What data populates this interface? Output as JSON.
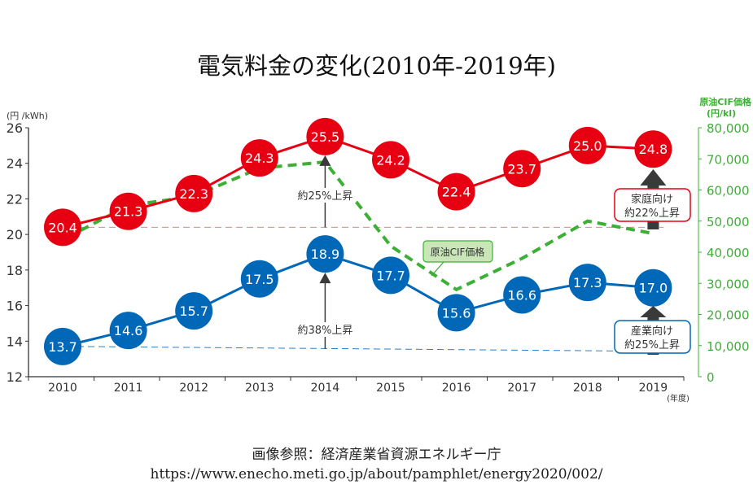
{
  "title": "電気料金の変化(2010年-2019年)",
  "footer": {
    "source_line": "画像参照：経済産業省資源エネルギー庁",
    "url_line": "https://www.enecho.meti.go.jp/about/pamphlet/energy2020/002/"
  },
  "chart_data": {
    "type": "line",
    "categories": [
      "2010",
      "2011",
      "2012",
      "2013",
      "2014",
      "2015",
      "2016",
      "2017",
      "2018",
      "2019"
    ],
    "xlabel": "(年度)",
    "ylabel": "(円 /kWh)",
    "ylabel_right": [
      "原油CIF価格",
      "(円/kl)"
    ],
    "ylim": [
      12,
      26
    ],
    "yticks": [
      12,
      14,
      16,
      18,
      20,
      22,
      24,
      26
    ],
    "ylim_right": [
      0,
      80000
    ],
    "yticks_right": [
      "0",
      "10,000",
      "20,000",
      "30,000",
      "40,000",
      "50,000",
      "60,000",
      "70,000",
      "80,000"
    ],
    "grid": false,
    "series": [
      {
        "key": "household",
        "values": [
          20.4,
          21.3,
          22.3,
          24.3,
          25.5,
          24.2,
          22.4,
          23.7,
          25.0,
          24.8
        ],
        "color": "#e60012",
        "axis": "left"
      },
      {
        "key": "industry",
        "values": [
          13.7,
          14.6,
          15.7,
          17.5,
          18.9,
          17.7,
          15.6,
          16.6,
          17.3,
          17.0
        ],
        "color": "#0068b7",
        "axis": "left"
      },
      {
        "name": "原油CIF価格",
        "values": [
          47000,
          55000,
          58000,
          67000,
          69000,
          42000,
          28000,
          38000,
          50000,
          46000
        ],
        "color": "#3cb035",
        "axis": "right",
        "style": "dashed"
      }
    ],
    "annotations": {
      "household_2014": "約25%上昇",
      "industry_2014": "約38%上昇",
      "household_2019": [
        "家庭向け",
        "約22%上昇"
      ],
      "industry_2019": [
        "産業向け",
        "約25%上昇"
      ],
      "crude_label": "原油CIF価格"
    },
    "colors": {
      "axis": "#333333",
      "right_axis": "#3cb035",
      "arrow": "#3a3a3a",
      "ref_red": "#f08080",
      "ref_blue": "#2a7fc9"
    }
  }
}
